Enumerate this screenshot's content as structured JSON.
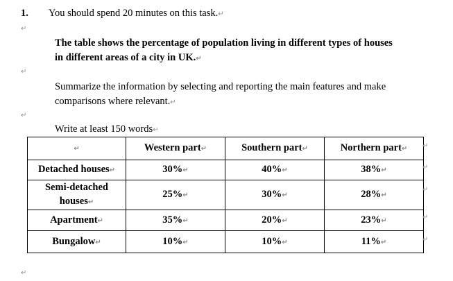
{
  "task": {
    "number": "1.",
    "instruction": "You should spend 20 minutes on this task.",
    "prompt_line1": "The table shows the percentage of population living in different types of houses",
    "prompt_line2": "in different areas of a city in UK.",
    "summary_line1": "Summarize the information by selecting and reporting the main features and make",
    "summary_line2": "comparisons where relevant.",
    "word_count": "Write at least 150 words"
  },
  "marks": {
    "paragraph": "↵",
    "cell": "↵"
  },
  "table": {
    "headers": [
      "",
      "Western part",
      "Southern part",
      "Northern part"
    ],
    "rows": [
      {
        "label": "Detached houses",
        "values": [
          "30%",
          "40%",
          "38%"
        ]
      },
      {
        "label_line1": "Semi-detached",
        "label_line2": "houses",
        "values": [
          "25%",
          "30%",
          "28%"
        ]
      },
      {
        "label": "Apartment",
        "values": [
          "35%",
          "20%",
          "23%"
        ]
      },
      {
        "label": "Bungalow",
        "values": [
          "10%",
          "10%",
          "11%"
        ]
      }
    ]
  }
}
